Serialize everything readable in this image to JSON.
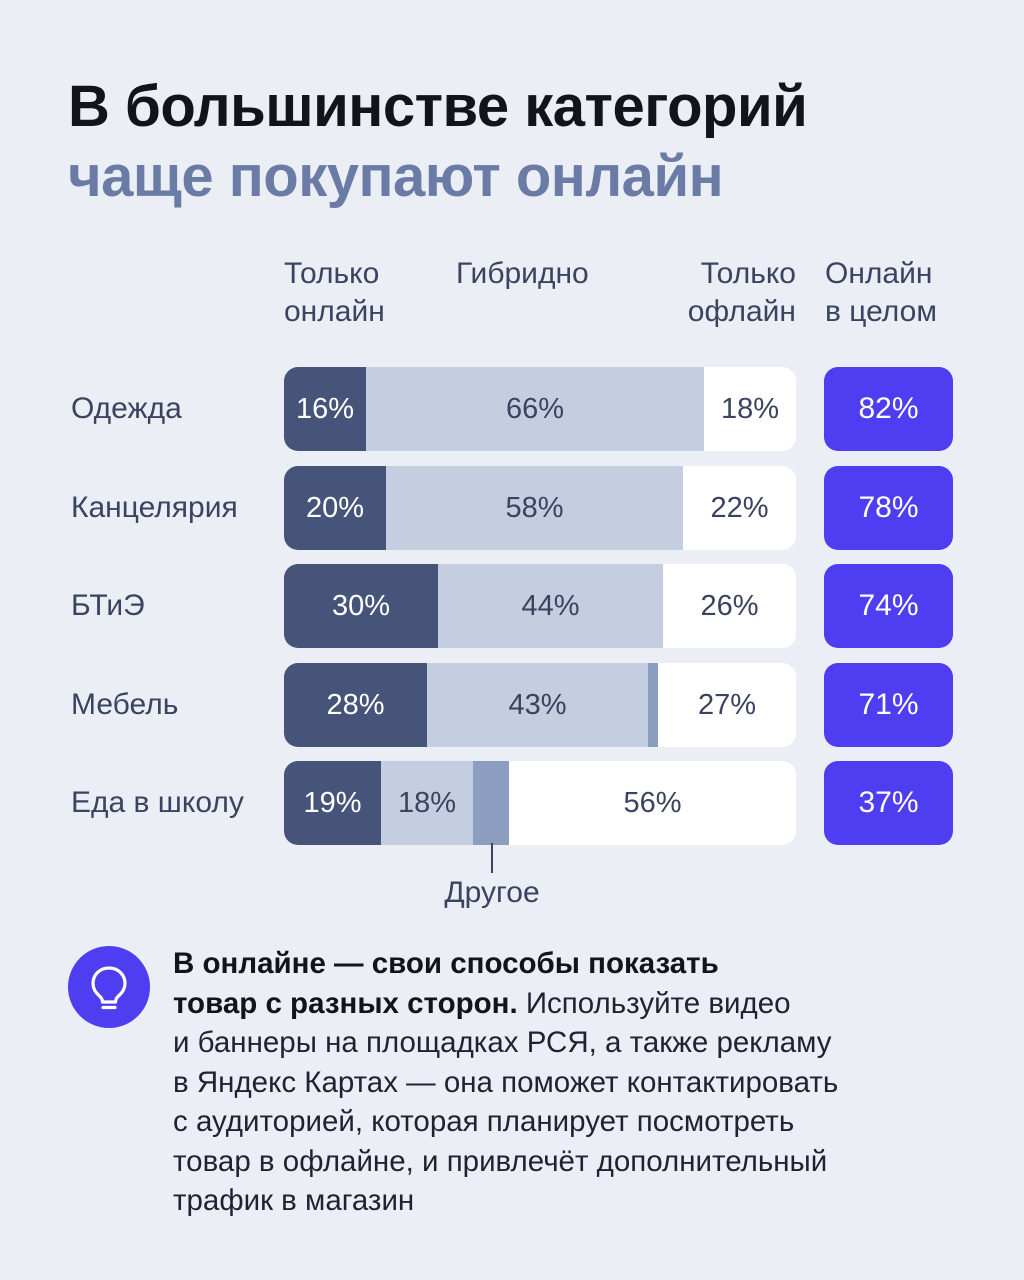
{
  "title": {
    "line1": "В большинстве категорий",
    "line2": "чаще покупают онлайн"
  },
  "chart_data": {
    "type": "bar",
    "stacked": true,
    "orientation": "horizontal",
    "columns": {
      "online_only": [
        "Только",
        "онлайн"
      ],
      "hybrid": [
        "Гибридно"
      ],
      "offline_only": [
        "Только",
        "офлайн"
      ],
      "online_total": [
        "Онлайн",
        "в целом"
      ]
    },
    "categories": [
      "Одежда",
      "Канцелярия",
      "БТиЭ",
      "Мебель",
      "Еда в школу"
    ],
    "series": [
      {
        "name": "Только онлайн",
        "values": [
          16,
          20,
          30,
          28,
          19
        ],
        "labels": [
          "16%",
          "20%",
          "30%",
          "28%",
          "19%"
        ]
      },
      {
        "name": "Гибридно",
        "values": [
          66,
          58,
          44,
          43,
          18
        ],
        "labels": [
          "66%",
          "58%",
          "44%",
          "43%",
          "18%"
        ]
      },
      {
        "name": "Другое",
        "values": [
          0,
          0,
          0,
          2,
          7
        ],
        "labels": [
          "",
          "",
          "",
          "",
          ""
        ]
      },
      {
        "name": "Только офлайн",
        "values": [
          18,
          22,
          26,
          27,
          56
        ],
        "labels": [
          "18%",
          "22%",
          "26%",
          "27%",
          "56%"
        ]
      }
    ],
    "online_total": {
      "values": [
        82,
        78,
        74,
        71,
        37
      ],
      "labels": [
        "82%",
        "78%",
        "74%",
        "71%",
        "37%"
      ]
    },
    "annotation": "Другое",
    "xlim": [
      0,
      100
    ],
    "colors": {
      "online_only": "#465479",
      "hybrid": "#c5cde0",
      "other": "#8b9ebf",
      "offline_only": "#ffffff",
      "online_total": "#4f3df2"
    }
  },
  "tip": {
    "icon": "lightbulb-icon",
    "bold_line1": "В онлайне — свои способы показать",
    "bold_line2": "товар с разных сторон.",
    "text_line2": " Используйте видео",
    "text_line3": "и баннеры на площадках РСЯ, а также рекламу",
    "text_line4": "в Яндекс Картах — она поможет контактировать",
    "text_line5": "с аудиторией, которая планирует посмотреть",
    "text_line6": "товар в офлайне, и привлечёт дополнительный",
    "text_line7": "трафик в магазин"
  }
}
